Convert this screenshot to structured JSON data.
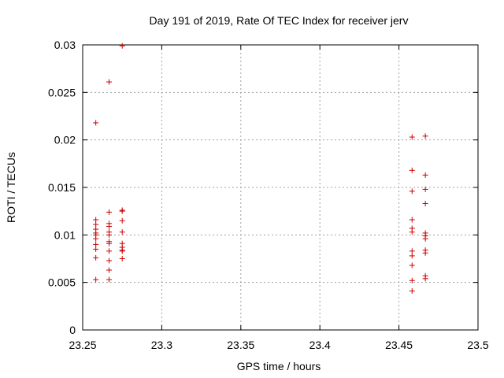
{
  "chart_data": {
    "type": "scatter",
    "title": "Day 191 of 2019, Rate Of TEC Index for receiver jerv",
    "xlabel": "GPS time / hours",
    "ylabel": "ROTI / TECUs",
    "xlim": [
      23.25,
      23.5
    ],
    "ylim": [
      0,
      0.03
    ],
    "xticks": [
      23.25,
      23.3,
      23.35,
      23.4,
      23.45,
      23.5
    ],
    "xtick_labels": [
      "23.25",
      "23.3",
      "23.35",
      "23.4",
      "23.45",
      "23.5"
    ],
    "yticks": [
      0,
      0.005,
      0.01,
      0.015,
      0.02,
      0.025,
      0.03
    ],
    "ytick_labels": [
      "0",
      "0.005",
      "0.01",
      "0.015",
      "0.02",
      "0.025",
      "0.03"
    ],
    "grid": true,
    "marker": "+",
    "color": "#cc0000",
    "series": [
      {
        "name": "ROTI",
        "points": [
          [
            23.2583,
            0.0218
          ],
          [
            23.2583,
            0.0116
          ],
          [
            23.2583,
            0.0111
          ],
          [
            23.2583,
            0.0106
          ],
          [
            23.2583,
            0.0102
          ],
          [
            23.2583,
            0.01
          ],
          [
            23.2583,
            0.0096
          ],
          [
            23.2583,
            0.009
          ],
          [
            23.2583,
            0.0085
          ],
          [
            23.2583,
            0.0076
          ],
          [
            23.2583,
            0.0053
          ],
          [
            23.2667,
            0.0261
          ],
          [
            23.2667,
            0.0124
          ],
          [
            23.2667,
            0.0112
          ],
          [
            23.2667,
            0.0109
          ],
          [
            23.2667,
            0.0103
          ],
          [
            23.2667,
            0.01
          ],
          [
            23.2667,
            0.0093
          ],
          [
            23.2667,
            0.0091
          ],
          [
            23.2667,
            0.0083
          ],
          [
            23.2667,
            0.0073
          ],
          [
            23.2667,
            0.0063
          ],
          [
            23.2667,
            0.0053
          ],
          [
            23.275,
            0.0299
          ],
          [
            23.275,
            0.0126
          ],
          [
            23.275,
            0.0125
          ],
          [
            23.275,
            0.0115
          ],
          [
            23.275,
            0.0103
          ],
          [
            23.275,
            0.0091
          ],
          [
            23.275,
            0.0087
          ],
          [
            23.275,
            0.0084
          ],
          [
            23.275,
            0.0083
          ],
          [
            23.275,
            0.0075
          ],
          [
            23.4583,
            0.0203
          ],
          [
            23.4583,
            0.0168
          ],
          [
            23.4583,
            0.0146
          ],
          [
            23.4583,
            0.0116
          ],
          [
            23.4583,
            0.0107
          ],
          [
            23.4583,
            0.0103
          ],
          [
            23.4583,
            0.0083
          ],
          [
            23.4583,
            0.0078
          ],
          [
            23.4583,
            0.0068
          ],
          [
            23.4583,
            0.0052
          ],
          [
            23.4583,
            0.0041
          ],
          [
            23.4667,
            0.0204
          ],
          [
            23.4667,
            0.0163
          ],
          [
            23.4667,
            0.0148
          ],
          [
            23.4667,
            0.0133
          ],
          [
            23.4667,
            0.0102
          ],
          [
            23.4667,
            0.0099
          ],
          [
            23.4667,
            0.0096
          ],
          [
            23.4667,
            0.0084
          ],
          [
            23.4667,
            0.0081
          ],
          [
            23.4667,
            0.0057
          ],
          [
            23.4667,
            0.0054
          ]
        ]
      }
    ]
  }
}
